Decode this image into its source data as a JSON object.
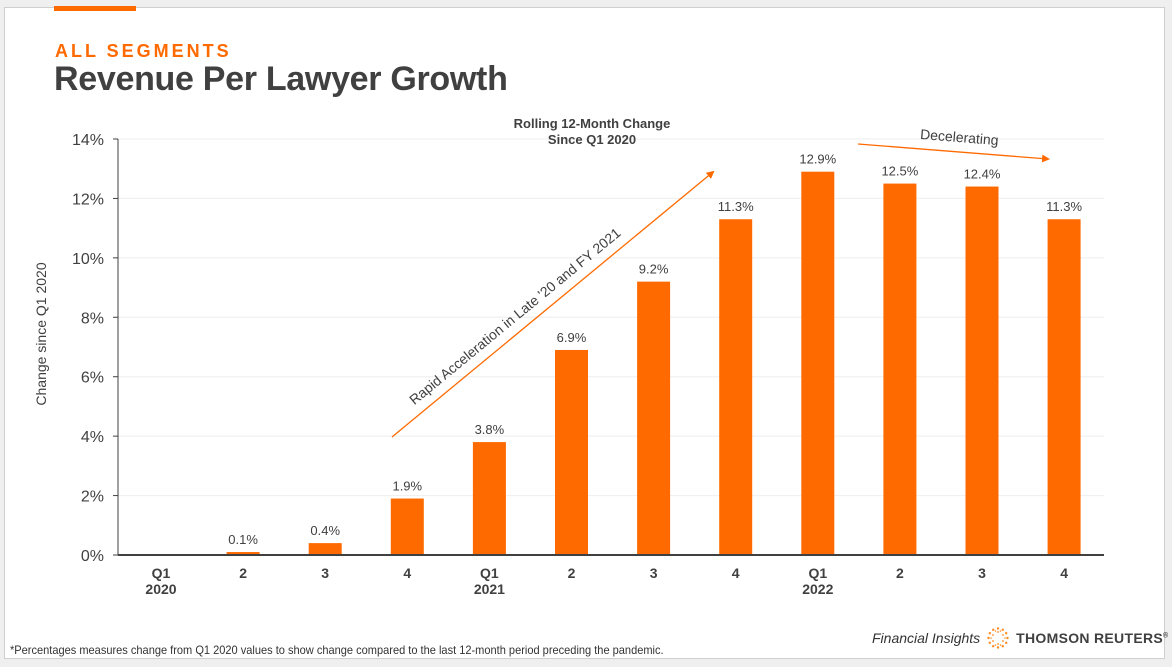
{
  "header": {
    "eyebrow": "ALL SEGMENTS",
    "title": "Revenue Per Lawyer Growth"
  },
  "footer": {
    "footnote": "*Percentages measures change from Q1 2020 values to show change compared to the last 12-month period preceding the pandemic.",
    "brand_insights": "Financial Insights",
    "brand_name": "THOMSON REUTERS",
    "brand_reg": "®"
  },
  "annotations": {
    "acceleration": "Rapid Acceleration in Late '20 and FY 2021",
    "deceleration": "Decelerating"
  },
  "colors": {
    "accent": "#ff6a00",
    "bar": "#ff6a00",
    "text": "#404040",
    "grid": "#eeeeee",
    "axis": "#404040"
  },
  "chart_data": {
    "type": "bar",
    "title": [
      "Rolling 12-Month Change",
      "Since Q1 2020"
    ],
    "xlabel": "",
    "ylabel": "Change since Q1 2020",
    "ylim": [
      0,
      14
    ],
    "yticks": [
      0,
      2,
      4,
      6,
      8,
      10,
      12,
      14
    ],
    "ytick_labels": [
      "0%",
      "2%",
      "4%",
      "6%",
      "8%",
      "10%",
      "12%",
      "14%"
    ],
    "grid": true,
    "categories": [
      {
        "line1": "Q1",
        "line2": "2020"
      },
      {
        "line1": "2",
        "line2": ""
      },
      {
        "line1": "3",
        "line2": ""
      },
      {
        "line1": "4",
        "line2": ""
      },
      {
        "line1": "Q1",
        "line2": "2021"
      },
      {
        "line1": "2",
        "line2": ""
      },
      {
        "line1": "3",
        "line2": ""
      },
      {
        "line1": "4",
        "line2": ""
      },
      {
        "line1": "Q1",
        "line2": "2022"
      },
      {
        "line1": "2",
        "line2": ""
      },
      {
        "line1": "3",
        "line2": ""
      },
      {
        "line1": "4",
        "line2": ""
      }
    ],
    "values": [
      0.0,
      0.1,
      0.4,
      1.9,
      3.8,
      6.9,
      9.2,
      11.3,
      12.9,
      12.5,
      12.4,
      11.3
    ],
    "data_labels": [
      "",
      "0.1%",
      "0.4%",
      "1.9%",
      "3.8%",
      "6.9%",
      "9.2%",
      "11.3%",
      "12.9%",
      "12.5%",
      "12.4%",
      "11.3%"
    ]
  }
}
